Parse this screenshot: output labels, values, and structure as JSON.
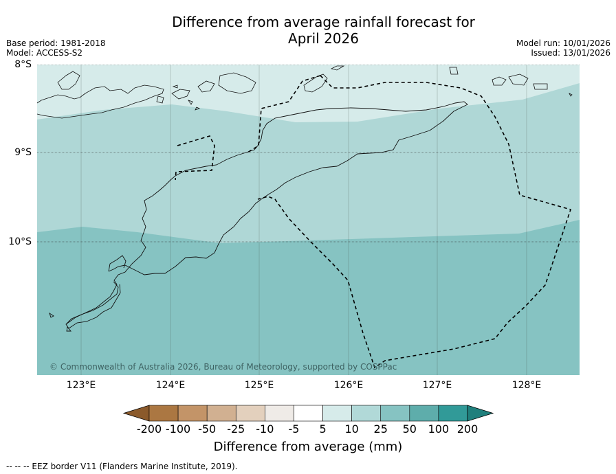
{
  "title_line1": "Difference from average rainfall forecast for",
  "title_line2": "April 2026",
  "base_period": "Base period: 1981-2018",
  "model": "Model: ACCESS-S2",
  "model_run": "Model run: 10/01/2026",
  "issued": "Issued: 13/01/2026",
  "lat_labels": [
    "8°S",
    "9°S",
    "10°S"
  ],
  "lon_labels": [
    "123°E",
    "124°E",
    "125°E",
    "126°E",
    "127°E",
    "128°E"
  ],
  "copyright": "© Commonwealth of Australia 2026, Bureau of Meteorology, supported by COSPPac",
  "colorbar": {
    "labels": [
      "-200",
      "-100",
      "-50",
      "-25",
      "-10",
      "-5",
      "5",
      "10",
      "25",
      "50",
      "100",
      "200"
    ],
    "title": "Difference from average (mm)",
    "colors": [
      "#8b5a2b",
      "#ab7742",
      "#c39468",
      "#d1b091",
      "#e3d0bd",
      "#efebe7",
      "#ffffff",
      "#d6ebea",
      "#b1d9d8",
      "#86c3c2",
      "#5eadab",
      "#319a98",
      "#1f7f7c"
    ]
  },
  "map_zone_colors": {
    "band_10_25": "#d6ebea",
    "band_25_50": "#afd7d6",
    "band_50_100": "#86c3c2"
  },
  "footnote": "--  --  -- EEZ border V11 (Flanders Marine Institute, 2019)."
}
